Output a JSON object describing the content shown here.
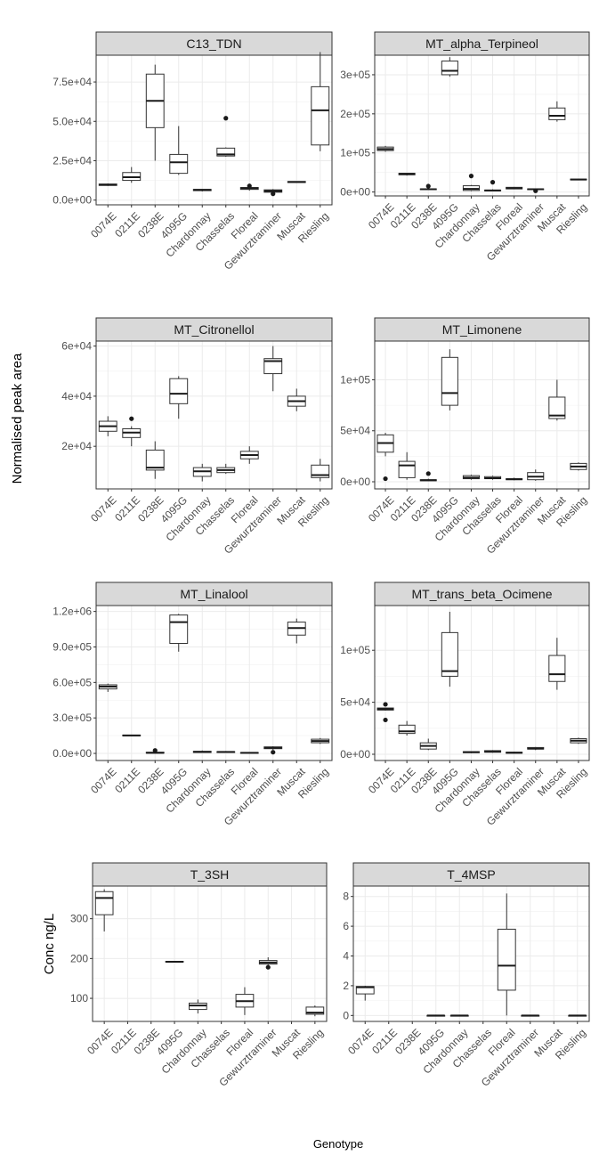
{
  "figure": {
    "ylabel_top": "Normalised peak area",
    "ylabel_bottom": "Conc ng/L",
    "xlabel": "Genotype"
  },
  "chart_data": [
    {
      "type": "box",
      "title": "C13_TDN",
      "categories": [
        "0074E",
        "0211E",
        "0238E",
        "4095G",
        "Chardonnay",
        "Chasselas",
        "Floreal",
        "Gewurztraminer",
        "Muscat",
        "Riesling"
      ],
      "ylim": [
        -3000,
        92000
      ],
      "yticks": [
        0,
        25000,
        50000,
        75000
      ],
      "ytick_labels": [
        "0.0e+00",
        "2.5e+04",
        "5.0e+04",
        "7.5e+04"
      ],
      "boxes": [
        {
          "min": 9000,
          "q1": 9300,
          "median": 9700,
          "q3": 10200,
          "max": 10600,
          "outliers": []
        },
        {
          "min": 11000,
          "q1": 12500,
          "median": 14500,
          "q3": 17500,
          "max": 21000,
          "outliers": []
        },
        {
          "min": 25000,
          "q1": 46000,
          "median": 63000,
          "q3": 80000,
          "max": 86000,
          "outliers": []
        },
        {
          "min": 16000,
          "q1": 17000,
          "median": 24000,
          "q3": 29000,
          "max": 47000,
          "outliers": []
        },
        {
          "min": 5500,
          "q1": 6000,
          "median": 6500,
          "q3": 6800,
          "max": 7000,
          "outliers": []
        },
        {
          "min": 27500,
          "q1": 28000,
          "median": 29000,
          "q3": 33000,
          "max": 33500,
          "outliers": [
            52000
          ]
        },
        {
          "min": 6000,
          "q1": 6800,
          "median": 7500,
          "q3": 8000,
          "max": 8500,
          "outliers": [
            9000
          ]
        },
        {
          "min": 4000,
          "q1": 5000,
          "median": 5800,
          "q3": 6500,
          "max": 7000,
          "outliers": [
            4000
          ]
        },
        {
          "min": 11000,
          "q1": 11200,
          "median": 11500,
          "q3": 11800,
          "max": 12000,
          "outliers": []
        },
        {
          "min": 31000,
          "q1": 35000,
          "median": 57000,
          "q3": 72000,
          "max": 94000,
          "outliers": []
        }
      ]
    },
    {
      "type": "box",
      "title": "MT_alpha_Terpineol",
      "categories": [
        "0074E",
        "0211E",
        "0238E",
        "4095G",
        "Chardonnay",
        "Chasselas",
        "Floreal",
        "Gewurztraminer",
        "Muscat",
        "Riesling"
      ],
      "ylim": [
        -10000,
        350000
      ],
      "yticks": [
        0,
        100000,
        200000,
        300000
      ],
      "ytick_labels": [
        "0e+00",
        "1e+05",
        "2e+05",
        "3e+05"
      ],
      "boxes": [
        {
          "min": 103000,
          "q1": 106000,
          "median": 110000,
          "q3": 115000,
          "max": 118000,
          "outliers": []
        },
        {
          "min": 42000,
          "q1": 44000,
          "median": 46000,
          "q3": 48000,
          "max": 49000,
          "outliers": []
        },
        {
          "min": 5000,
          "q1": 6000,
          "median": 7000,
          "q3": 8000,
          "max": 9000,
          "outliers": [
            15000
          ]
        },
        {
          "min": 295000,
          "q1": 300000,
          "median": 310000,
          "q3": 335000,
          "max": 345000,
          "outliers": []
        },
        {
          "min": 2000,
          "q1": 4000,
          "median": 8000,
          "q3": 16000,
          "max": 18000,
          "outliers": [
            41000
          ]
        },
        {
          "min": 2000,
          "q1": 3000,
          "median": 4000,
          "q3": 5000,
          "max": 7000,
          "outliers": [
            25000
          ]
        },
        {
          "min": 7000,
          "q1": 8000,
          "median": 9500,
          "q3": 12000,
          "max": 13000,
          "outliers": []
        },
        {
          "min": 5000,
          "q1": 6000,
          "median": 7000,
          "q3": 8000,
          "max": 9000,
          "outliers": [
            3000
          ]
        },
        {
          "min": 180000,
          "q1": 185000,
          "median": 195000,
          "q3": 215000,
          "max": 232000,
          "outliers": []
        },
        {
          "min": 30000,
          "q1": 31000,
          "median": 32000,
          "q3": 33000,
          "max": 34000,
          "outliers": []
        }
      ]
    },
    {
      "type": "box",
      "title": "MT_Citronellol",
      "categories": [
        "0074E",
        "0211E",
        "0238E",
        "4095G",
        "Chardonnay",
        "Chasselas",
        "Floreal",
        "Gewurztraminer",
        "Muscat",
        "Riesling"
      ],
      "ylim": [
        3000,
        62000
      ],
      "yticks": [
        20000,
        40000,
        60000
      ],
      "ytick_labels": [
        "2e+04",
        "4e+04",
        "6e+04"
      ],
      "boxes": [
        {
          "min": 24000,
          "q1": 26000,
          "median": 28000,
          "q3": 30000,
          "max": 32000,
          "outliers": []
        },
        {
          "min": 20000,
          "q1": 23500,
          "median": 25500,
          "q3": 27000,
          "max": 28000,
          "outliers": [
            31000
          ]
        },
        {
          "min": 7000,
          "q1": 10500,
          "median": 11500,
          "q3": 18500,
          "max": 22000,
          "outliers": []
        },
        {
          "min": 31000,
          "q1": 37000,
          "median": 41000,
          "q3": 47000,
          "max": 48000,
          "outliers": []
        },
        {
          "min": 6000,
          "q1": 8000,
          "median": 10000,
          "q3": 11500,
          "max": 13000,
          "outliers": []
        },
        {
          "min": 9000,
          "q1": 9500,
          "median": 10500,
          "q3": 11500,
          "max": 13000,
          "outliers": []
        },
        {
          "min": 13000,
          "q1": 15000,
          "median": 16500,
          "q3": 18000,
          "max": 20000,
          "outliers": []
        },
        {
          "min": 42000,
          "q1": 49000,
          "median": 54000,
          "q3": 55000,
          "max": 60000,
          "outliers": []
        },
        {
          "min": 34000,
          "q1": 36000,
          "median": 38000,
          "q3": 40000,
          "max": 43000,
          "outliers": []
        },
        {
          "min": 6000,
          "q1": 7500,
          "median": 8500,
          "q3": 12500,
          "max": 15000,
          "outliers": []
        }
      ]
    },
    {
      "type": "box",
      "title": "MT_Limonene",
      "categories": [
        "0074E",
        "0211E",
        "0238E",
        "4095G",
        "Chardonnay",
        "Chasselas",
        "Floreal",
        "Gewurztraminer",
        "Muscat",
        "Riesling"
      ],
      "ylim": [
        -7000,
        138000
      ],
      "yticks": [
        0,
        50000,
        100000
      ],
      "ytick_labels": [
        "0e+00",
        "5e+04",
        "1e+05"
      ],
      "boxes": [
        {
          "min": 25000,
          "q1": 29000,
          "median": 38000,
          "q3": 46000,
          "max": 48000,
          "outliers": [
            3000
          ]
        },
        {
          "min": 2000,
          "q1": 4000,
          "median": 16000,
          "q3": 20000,
          "max": 29000,
          "outliers": []
        },
        {
          "min": 500,
          "q1": 1000,
          "median": 1500,
          "q3": 2000,
          "max": 3000,
          "outliers": [
            8000
          ]
        },
        {
          "min": 70000,
          "q1": 75000,
          "median": 87000,
          "q3": 122000,
          "max": 130000,
          "outliers": []
        },
        {
          "min": 2000,
          "q1": 3000,
          "median": 4000,
          "q3": 6000,
          "max": 7000,
          "outliers": []
        },
        {
          "min": 2000,
          "q1": 3000,
          "median": 3500,
          "q3": 5000,
          "max": 6000,
          "outliers": []
        },
        {
          "min": 1500,
          "q1": 2000,
          "median": 2500,
          "q3": 3000,
          "max": 4000,
          "outliers": []
        },
        {
          "min": 1000,
          "q1": 2000,
          "median": 5000,
          "q3": 9000,
          "max": 12000,
          "outliers": []
        },
        {
          "min": 60000,
          "q1": 62000,
          "median": 65000,
          "q3": 83000,
          "max": 100000,
          "outliers": []
        },
        {
          "min": 11000,
          "q1": 12000,
          "median": 15000,
          "q3": 18000,
          "max": 19000,
          "outliers": []
        }
      ]
    },
    {
      "type": "box",
      "title": "MT_Linalool",
      "categories": [
        "0074E",
        "0211E",
        "0238E",
        "4095G",
        "Chardonnay",
        "Chasselas",
        "Floreal",
        "Gewurztraminer",
        "Muscat",
        "Riesling"
      ],
      "ylim": [
        -60000,
        1250000
      ],
      "yticks": [
        0,
        300000,
        600000,
        900000,
        1200000
      ],
      "ytick_labels": [
        "0.0e+00",
        "3.0e+05",
        "6.0e+05",
        "9.0e+05",
        "1.2e+06"
      ],
      "boxes": [
        {
          "min": 520000,
          "q1": 545000,
          "median": 565000,
          "q3": 580000,
          "max": 590000,
          "outliers": []
        },
        {
          "min": 148000,
          "q1": 150000,
          "median": 152000,
          "q3": 155000,
          "max": 158000,
          "outliers": []
        },
        {
          "min": 0,
          "q1": 2000,
          "median": 5000,
          "q3": 10000,
          "max": 15000,
          "outliers": [
            25000
          ]
        },
        {
          "min": 860000,
          "q1": 930000,
          "median": 1110000,
          "q3": 1170000,
          "max": 1180000,
          "outliers": []
        },
        {
          "min": 5000,
          "q1": 8000,
          "median": 12000,
          "q3": 18000,
          "max": 25000,
          "outliers": []
        },
        {
          "min": 5000,
          "q1": 8000,
          "median": 12000,
          "q3": 15000,
          "max": 20000,
          "outliers": []
        },
        {
          "min": 2000,
          "q1": 3000,
          "median": 5000,
          "q3": 7000,
          "max": 9000,
          "outliers": []
        },
        {
          "min": 30000,
          "q1": 40000,
          "median": 48000,
          "q3": 55000,
          "max": 60000,
          "outliers": [
            10000
          ]
        },
        {
          "min": 930000,
          "q1": 1000000,
          "median": 1060000,
          "q3": 1110000,
          "max": 1140000,
          "outliers": []
        },
        {
          "min": 80000,
          "q1": 90000,
          "median": 105000,
          "q3": 120000,
          "max": 130000,
          "outliers": []
        }
      ]
    },
    {
      "type": "box",
      "title": "MT_trans_beta_Ocimene",
      "categories": [
        "0074E",
        "0211E",
        "0238E",
        "4095G",
        "Chardonnay",
        "Chasselas",
        "Floreal",
        "Gewurztraminer",
        "Muscat",
        "Riesling"
      ],
      "ylim": [
        -6000,
        143000
      ],
      "yticks": [
        0,
        50000,
        100000
      ],
      "ytick_labels": [
        "0e+00",
        "5e+04",
        "1e+05"
      ],
      "boxes": [
        {
          "min": 42000,
          "q1": 42500,
          "median": 43500,
          "q3": 44500,
          "max": 45000,
          "outliers": [
            48000,
            33000
          ]
        },
        {
          "min": 18000,
          "q1": 20000,
          "median": 22000,
          "q3": 28000,
          "max": 32000,
          "outliers": []
        },
        {
          "min": 4000,
          "q1": 5000,
          "median": 8000,
          "q3": 11000,
          "max": 15000,
          "outliers": []
        },
        {
          "min": 65000,
          "q1": 75000,
          "median": 80000,
          "q3": 117000,
          "max": 137000,
          "outliers": []
        },
        {
          "min": 1000,
          "q1": 1500,
          "median": 2000,
          "q3": 2500,
          "max": 3000,
          "outliers": []
        },
        {
          "min": 1500,
          "q1": 2000,
          "median": 2500,
          "q3": 3500,
          "max": 4000,
          "outliers": []
        },
        {
          "min": 500,
          "q1": 1000,
          "median": 1500,
          "q3": 2000,
          "max": 2500,
          "outliers": []
        },
        {
          "min": 4000,
          "q1": 5000,
          "median": 5500,
          "q3": 6500,
          "max": 7000,
          "outliers": []
        },
        {
          "min": 62000,
          "q1": 70000,
          "median": 77000,
          "q3": 95000,
          "max": 112000,
          "outliers": []
        },
        {
          "min": 10000,
          "q1": 11000,
          "median": 13000,
          "q3": 15000,
          "max": 16000,
          "outliers": []
        }
      ]
    },
    {
      "type": "box",
      "title": "T_3SH",
      "categories": [
        "0074E",
        "0211E",
        "0238E",
        "4095G",
        "Chardonnay",
        "Chasselas",
        "Floreal",
        "Gewurztraminer",
        "Muscat",
        "Riesling"
      ],
      "ylim": [
        42000,
        382000
      ],
      "yticks": [
        100000,
        200000,
        300000
      ],
      "ytick_labels": [
        "100",
        "200",
        "300"
      ],
      "scale_note": "values stored x1000",
      "boxes": [
        {
          "min": 268000,
          "q1": 310000,
          "median": 352000,
          "q3": 368000,
          "max": 374000,
          "outliers": []
        },
        null,
        null,
        {
          "min": 190000,
          "q1": 191000,
          "median": 192000,
          "q3": 193000,
          "max": 194000,
          "outliers": []
        },
        {
          "min": 62000,
          "q1": 72000,
          "median": 82000,
          "q3": 88000,
          "max": 97000,
          "outliers": []
        },
        null,
        {
          "min": 58000,
          "q1": 78000,
          "median": 93000,
          "q3": 110000,
          "max": 128000,
          "outliers": []
        },
        {
          "min": 183000,
          "q1": 186000,
          "median": 190000,
          "q3": 195000,
          "max": 203000,
          "outliers": [
            178000
          ]
        },
        null,
        {
          "min": 55000,
          "q1": 60000,
          "median": 64000,
          "q3": 78000,
          "max": 82000,
          "outliers": []
        }
      ]
    },
    {
      "type": "box",
      "title": "T_4MSP",
      "categories": [
        "0074E",
        "0211E",
        "0238E",
        "4095G",
        "Chardonnay",
        "Chasselas",
        "Floreal",
        "Gewurztraminer",
        "Muscat",
        "Riesling"
      ],
      "ylim": [
        -400,
        8700
      ],
      "yticks": [
        0,
        2000,
        4000,
        6000,
        8000
      ],
      "ytick_labels": [
        "0",
        "2",
        "4",
        "6",
        "8"
      ],
      "scale_note": "values stored x1000",
      "boxes": [
        {
          "min": 1000,
          "q1": 1450,
          "median": 1900,
          "q3": 1950,
          "max": 2000,
          "outliers": []
        },
        null,
        null,
        {
          "min": 0,
          "q1": 0,
          "median": 0,
          "q3": 0,
          "max": 0,
          "outliers": []
        },
        {
          "min": 0,
          "q1": 0,
          "median": 0,
          "q3": 0,
          "max": 0,
          "outliers": []
        },
        null,
        {
          "min": 0,
          "q1": 1700,
          "median": 3350,
          "q3": 5800,
          "max": 8200,
          "outliers": []
        },
        {
          "min": 0,
          "q1": 0,
          "median": 0,
          "q3": 0,
          "max": 0,
          "outliers": []
        },
        null,
        {
          "min": 0,
          "q1": 0,
          "median": 0,
          "q3": 0,
          "max": 0,
          "outliers": []
        }
      ]
    }
  ]
}
